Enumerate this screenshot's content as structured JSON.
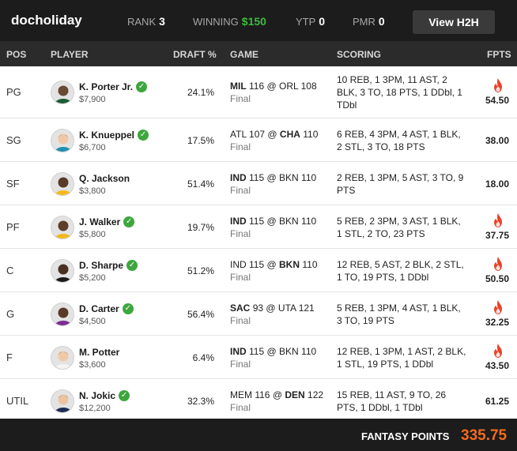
{
  "topbar": {
    "username": "docholiday",
    "rank_label": "RANK",
    "rank_value": "3",
    "winning_label": "WINNING",
    "winning_value": "$150",
    "ytp_label": "YTP",
    "ytp_value": "0",
    "pmr_label": "PMR",
    "pmr_value": "0",
    "h2h_button": "View H2H"
  },
  "columns": {
    "pos": "POS",
    "player": "PLAYER",
    "draft": "DRAFT %",
    "game": "GAME",
    "scoring": "SCORING",
    "fpts": "FPTS"
  },
  "colors": {
    "accent_orange": "#f26b1d",
    "winning_green": "#3dbb3d",
    "check_green": "#3ea63e",
    "flame_red": "#e8432a"
  },
  "rows": [
    {
      "pos": "PG",
      "name": "K. Porter Jr.",
      "verified": true,
      "salary": "$7,900",
      "draft": "24.1%",
      "away": "MIL",
      "away_score": "116",
      "home": "ORL",
      "home_score": "108",
      "bold": "away",
      "status": "Final",
      "scoring": "10 REB, 1 3PM, 11 AST, 2 BLK, 3 TO, 18 PTS, 1 DDbl, 1 TDbl",
      "fpts": "54.50",
      "hot": true
    },
    {
      "pos": "SG",
      "name": "K. Knueppel",
      "verified": true,
      "salary": "$6,700",
      "draft": "17.5%",
      "away": "ATL",
      "away_score": "107",
      "home": "CHA",
      "home_score": "110",
      "bold": "home",
      "status": "Final",
      "scoring": "6 REB, 4 3PM, 4 AST, 1 BLK, 2 STL, 3 TO, 18 PTS",
      "fpts": "38.00",
      "hot": false
    },
    {
      "pos": "SF",
      "name": "Q. Jackson",
      "verified": false,
      "salary": "$3,800",
      "draft": "51.4%",
      "away": "IND",
      "away_score": "115",
      "home": "BKN",
      "home_score": "110",
      "bold": "away",
      "status": "Final",
      "scoring": "2 REB, 1 3PM, 5 AST, 3 TO, 9 PTS",
      "fpts": "18.00",
      "hot": false
    },
    {
      "pos": "PF",
      "name": "J. Walker",
      "verified": true,
      "salary": "$5,800",
      "draft": "19.7%",
      "away": "IND",
      "away_score": "115",
      "home": "BKN",
      "home_score": "110",
      "bold": "away",
      "status": "Final",
      "scoring": "5 REB, 2 3PM, 3 AST, 1 BLK, 1 STL, 2 TO, 23 PTS",
      "fpts": "37.75",
      "hot": true
    },
    {
      "pos": "C",
      "name": "D. Sharpe",
      "verified": true,
      "salary": "$5,200",
      "draft": "51.2%",
      "away": "IND",
      "away_score": "115",
      "home": "BKN",
      "home_score": "110",
      "bold": "home",
      "status": "Final",
      "scoring": "12 REB, 5 AST, 2 BLK, 2 STL, 1 TO, 19 PTS, 1 DDbl",
      "fpts": "50.50",
      "hot": true
    },
    {
      "pos": "G",
      "name": "D. Carter",
      "verified": true,
      "salary": "$4,500",
      "draft": "56.4%",
      "away": "SAC",
      "away_score": "93",
      "home": "UTA",
      "home_score": "121",
      "bold": "away",
      "status": "Final",
      "scoring": "5 REB, 1 3PM, 4 AST, 1 BLK, 3 TO, 19 PTS",
      "fpts": "32.25",
      "hot": true
    },
    {
      "pos": "F",
      "name": "M. Potter",
      "verified": false,
      "salary": "$3,600",
      "draft": "6.4%",
      "away": "IND",
      "away_score": "115",
      "home": "BKN",
      "home_score": "110",
      "bold": "away",
      "status": "Final",
      "scoring": "12 REB, 1 3PM, 1 AST, 2 BLK, 1 STL, 19 PTS, 1 DDbl",
      "fpts": "43.50",
      "hot": true
    },
    {
      "pos": "UTIL",
      "name": "N. Jokic",
      "verified": true,
      "salary": "$12,200",
      "draft": "32.3%",
      "away": "MEM",
      "away_score": "116",
      "home": "DEN",
      "home_score": "122",
      "bold": "home",
      "status": "Final",
      "scoring": "15 REB, 11 AST, 9 TO, 26 PTS, 1 DDbl, 1 TDbl",
      "fpts": "61.25",
      "hot": false
    }
  ],
  "footer": {
    "label": "FANTASY POINTS",
    "total": "335.75"
  }
}
